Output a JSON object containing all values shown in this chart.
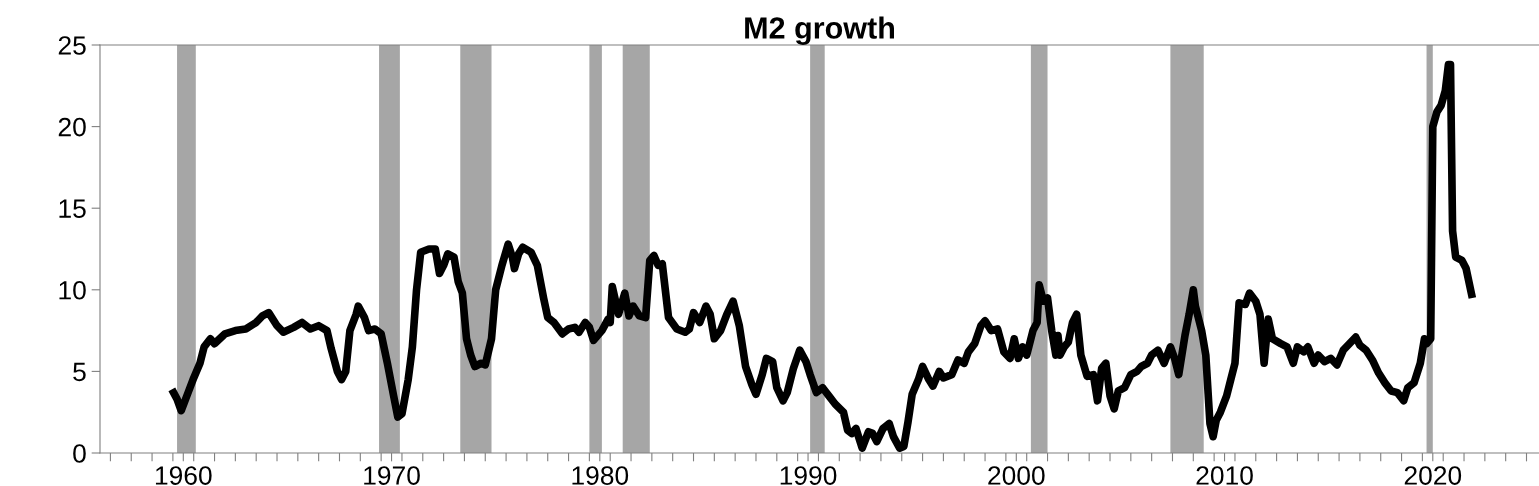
{
  "chart_data": {
    "type": "line",
    "title": "M2 growth",
    "xlim": [
      1956.0,
      2025.1
    ],
    "ylim": [
      0,
      25
    ],
    "yticks": [
      0,
      5,
      10,
      15,
      20,
      25
    ],
    "xticks": [
      {
        "value": 1956.5,
        "label": null
      },
      {
        "value": 1957.5,
        "label": null
      },
      {
        "value": 1958.5,
        "label": null
      },
      {
        "value": 1959.5,
        "label": null
      },
      1960,
      {
        "value": 1960.5,
        "label": null
      },
      {
        "value": 1961.5,
        "label": null
      },
      {
        "value": 1962.5,
        "label": null
      },
      {
        "value": 1963.5,
        "label": null
      },
      {
        "value": 1964.5,
        "label": null
      },
      {
        "value": 1965.5,
        "label": null
      },
      {
        "value": 1966.5,
        "label": null
      },
      {
        "value": 1967.5,
        "label": null
      },
      {
        "value": 1968.5,
        "label": null
      },
      {
        "value": 1969.5,
        "label": null
      },
      1970,
      {
        "value": 1970.5,
        "label": null
      },
      {
        "value": 1971.5,
        "label": null
      },
      {
        "value": 1972.5,
        "label": null
      },
      {
        "value": 1973.5,
        "label": null
      },
      {
        "value": 1974.5,
        "label": null
      },
      {
        "value": 1975.5,
        "label": null
      },
      {
        "value": 1976.5,
        "label": null
      },
      {
        "value": 1977.5,
        "label": null
      },
      {
        "value": 1978.5,
        "label": null
      },
      {
        "value": 1979.5,
        "label": null
      },
      1980,
      {
        "value": 1980.5,
        "label": null
      },
      {
        "value": 1981.5,
        "label": null
      },
      {
        "value": 1982.5,
        "label": null
      },
      {
        "value": 1983.5,
        "label": null
      },
      {
        "value": 1984.5,
        "label": null
      },
      {
        "value": 1985.5,
        "label": null
      },
      {
        "value": 1986.5,
        "label": null
      },
      {
        "value": 1987.5,
        "label": null
      },
      {
        "value": 1988.5,
        "label": null
      },
      {
        "value": 1989.5,
        "label": null
      },
      1990,
      {
        "value": 1990.5,
        "label": null
      },
      {
        "value": 1991.5,
        "label": null
      },
      {
        "value": 1992.5,
        "label": null
      },
      {
        "value": 1993.5,
        "label": null
      },
      {
        "value": 1994.5,
        "label": null
      },
      {
        "value": 1995.5,
        "label": null
      },
      {
        "value": 1996.5,
        "label": null
      },
      {
        "value": 1997.5,
        "label": null
      },
      {
        "value": 1998.5,
        "label": null
      },
      {
        "value": 1999.5,
        "label": null
      },
      2000,
      {
        "value": 2000.5,
        "label": null
      },
      {
        "value": 2001.5,
        "label": null
      },
      {
        "value": 2002.5,
        "label": null
      },
      {
        "value": 2003.5,
        "label": null
      },
      {
        "value": 2004.5,
        "label": null
      },
      {
        "value": 2005.5,
        "label": null
      },
      {
        "value": 2006.5,
        "label": null
      },
      {
        "value": 2007.5,
        "label": null
      },
      {
        "value": 2008.5,
        "label": null
      },
      {
        "value": 2009.5,
        "label": null
      },
      2010,
      {
        "value": 2010.5,
        "label": null
      },
      {
        "value": 2011.5,
        "label": null
      },
      {
        "value": 2012.5,
        "label": null
      },
      {
        "value": 2013.5,
        "label": null
      },
      {
        "value": 2014.5,
        "label": null
      },
      {
        "value": 2015.5,
        "label": null
      },
      {
        "value": 2016.5,
        "label": null
      },
      {
        "value": 2017.5,
        "label": null
      },
      {
        "value": 2018.5,
        "label": null
      },
      {
        "value": 2019.5,
        "label": null
      },
      2020,
      {
        "value": 2020.5,
        "label": null
      },
      {
        "value": 2021.5,
        "label": null
      },
      {
        "value": 2022.5,
        "label": null
      },
      {
        "value": 2023.5,
        "label": null
      },
      {
        "value": 2024.5,
        "label": null
      }
    ],
    "grid": false,
    "legend": false,
    "marker": "none",
    "line_style": "solid",
    "bands": [
      {
        "axis": "x",
        "from": 1959.7,
        "to": 1960.6,
        "color": "#a6a6a6"
      },
      {
        "axis": "x",
        "from": 1969.4,
        "to": 1970.4,
        "color": "#a6a6a6"
      },
      {
        "axis": "x",
        "from": 1973.3,
        "to": 1974.8,
        "color": "#a6a6a6"
      },
      {
        "axis": "x",
        "from": 1979.5,
        "to": 1980.1,
        "color": "#a6a6a6"
      },
      {
        "axis": "x",
        "from": 1981.1,
        "to": 1982.4,
        "color": "#a6a6a6"
      },
      {
        "axis": "x",
        "from": 1990.1,
        "to": 1990.8,
        "color": "#a6a6a6"
      },
      {
        "axis": "x",
        "from": 2000.7,
        "to": 2001.5,
        "color": "#a6a6a6"
      },
      {
        "axis": "x",
        "from": 2007.4,
        "to": 2009.0,
        "color": "#a6a6a6"
      },
      {
        "axis": "x",
        "from": 2019.7,
        "to": 2020.0,
        "color": "#a6a6a6"
      }
    ],
    "series": [
      {
        "color": "#000000",
        "x": [
          1959.45,
          1959.7,
          1959.9,
          1960.2,
          1960.5,
          1960.8,
          1961.0,
          1961.3,
          1961.5,
          1962.0,
          1962.5,
          1963.0,
          1963.5,
          1963.8,
          1964.1,
          1964.5,
          1964.8,
          1965.3,
          1965.7,
          1966.1,
          1966.5,
          1966.9,
          1967.1,
          1967.4,
          1967.6,
          1967.8,
          1968.0,
          1968.3,
          1968.4,
          1968.7,
          1968.9,
          1969.2,
          1969.5,
          1969.8,
          1970.1,
          1970.3,
          1970.5,
          1970.8,
          1971.0,
          1971.2,
          1971.4,
          1971.8,
          1972.1,
          1972.3,
          1972.5,
          1972.7,
          1973.0,
          1973.2,
          1973.4,
          1973.6,
          1973.8,
          1974.0,
          1974.3,
          1974.5,
          1974.8,
          1975.0,
          1975.3,
          1975.6,
          1975.8,
          1975.9,
          1976.1,
          1976.3,
          1976.7,
          1977.0,
          1977.3,
          1977.5,
          1977.8,
          1978.2,
          1978.5,
          1978.8,
          1979.0,
          1979.3,
          1979.5,
          1979.7,
          1980.1,
          1980.4,
          1980.5,
          1980.6,
          1980.9,
          1981.2,
          1981.4,
          1981.6,
          1981.9,
          1982.2,
          1982.4,
          1982.6,
          1982.8,
          1983.0,
          1983.3,
          1983.7,
          1984.1,
          1984.3,
          1984.5,
          1984.8,
          1985.1,
          1985.3,
          1985.5,
          1985.8,
          1986.1,
          1986.4,
          1986.7,
          1987.0,
          1987.3,
          1987.5,
          1987.8,
          1988.0,
          1988.3,
          1988.5,
          1988.8,
          1989.0,
          1989.3,
          1989.6,
          1989.9,
          1990.1,
          1990.4,
          1990.7,
          1991.0,
          1991.3,
          1991.7,
          1991.9,
          1992.1,
          1992.3,
          1992.6,
          1992.9,
          1993.1,
          1993.3,
          1993.6,
          1993.9,
          1994.1,
          1994.4,
          1994.6,
          1994.8,
          1995.0,
          1995.3,
          1995.5,
          1995.8,
          1996.0,
          1996.3,
          1996.5,
          1996.9,
          1997.2,
          1997.5,
          1997.7,
          1998.0,
          1998.3,
          1998.5,
          1998.8,
          1999.1,
          1999.4,
          1999.7,
          1999.9,
          2000.1,
          2000.3,
          2000.5,
          2000.8,
          2001.0,
          2001.1,
          2001.3,
          2001.5,
          2001.7,
          2001.9,
          2002.0,
          2002.1,
          2002.3,
          2002.5,
          2002.7,
          2002.9,
          2003.1,
          2003.4,
          2003.7,
          2003.9,
          2004.1,
          2004.3,
          2004.5,
          2004.7,
          2004.9,
          2005.2,
          2005.5,
          2005.8,
          2006.0,
          2006.3,
          2006.5,
          2006.8,
          2007.1,
          2007.4,
          2007.6,
          2007.8,
          2008.1,
          2008.3,
          2008.5,
          2008.6,
          2008.7,
          2008.9,
          2009.1,
          2009.3,
          2009.45,
          2009.6,
          2009.8,
          2010.1,
          2010.3,
          2010.5,
          2010.7,
          2011.0,
          2011.2,
          2011.5,
          2011.7,
          2011.9,
          2012.1,
          2012.3,
          2012.7,
          2013.0,
          2013.3,
          2013.5,
          2013.8,
          2014.0,
          2014.3,
          2014.5,
          2014.8,
          2015.1,
          2015.4,
          2015.7,
          2016.0,
          2016.3,
          2016.5,
          2016.8,
          2017.1,
          2017.4,
          2017.7,
          2018.0,
          2018.3,
          2018.6,
          2018.8,
          2019.1,
          2019.4,
          2019.6,
          2019.7,
          2019.9,
          2020.0,
          2020.2,
          2020.4,
          2020.6,
          2020.75,
          2020.85,
          2020.95,
          2021.1,
          2021.4,
          2021.6,
          2021.9
        ],
        "values": [
          3.9,
          3.3,
          2.6,
          3.6,
          4.6,
          5.5,
          6.5,
          7.0,
          6.7,
          7.3,
          7.5,
          7.6,
          8.0,
          8.4,
          8.6,
          7.8,
          7.4,
          7.7,
          8.0,
          7.6,
          7.8,
          7.5,
          6.4,
          5.0,
          4.5,
          5.0,
          7.5,
          8.5,
          9.0,
          8.3,
          7.5,
          7.6,
          7.3,
          5.5,
          3.5,
          2.2,
          2.4,
          4.5,
          6.5,
          10.0,
          12.3,
          12.5,
          12.5,
          11.0,
          11.5,
          12.2,
          12.0,
          10.5,
          9.8,
          7.0,
          6.0,
          5.3,
          5.5,
          5.4,
          7.0,
          10.0,
          11.5,
          12.8,
          12.0,
          11.3,
          12.2,
          12.6,
          12.3,
          11.5,
          9.5,
          8.3,
          8.0,
          7.3,
          7.6,
          7.7,
          7.4,
          8.0,
          7.7,
          6.9,
          7.5,
          8.2,
          8.0,
          10.2,
          8.5,
          9.8,
          8.4,
          9.0,
          8.4,
          8.3,
          11.8,
          12.1,
          11.5,
          11.6,
          8.3,
          7.6,
          7.4,
          7.6,
          8.6,
          8.0,
          9.0,
          8.5,
          7.0,
          7.5,
          8.5,
          9.3,
          7.8,
          5.3,
          4.2,
          3.6,
          4.8,
          5.8,
          5.6,
          4.0,
          3.2,
          3.7,
          5.2,
          6.3,
          5.6,
          4.8,
          3.7,
          4.0,
          3.5,
          3.0,
          2.5,
          1.4,
          1.2,
          1.5,
          0.3,
          1.3,
          1.2,
          0.7,
          1.5,
          1.8,
          1.0,
          0.3,
          0.4,
          1.9,
          3.6,
          4.5,
          5.3,
          4.5,
          4.1,
          5.0,
          4.6,
          4.8,
          5.7,
          5.5,
          6.2,
          6.7,
          7.8,
          8.1,
          7.5,
          7.6,
          6.2,
          5.8,
          7.0,
          5.8,
          6.5,
          6.0,
          7.5,
          8.0,
          10.3,
          9.3,
          9.5,
          7.5,
          6.0,
          7.2,
          6.0,
          6.5,
          6.8,
          8.0,
          8.5,
          6.0,
          4.7,
          4.8,
          3.2,
          5.2,
          5.5,
          3.5,
          2.7,
          3.8,
          4.0,
          4.8,
          5.0,
          5.3,
          5.5,
          6.0,
          6.3,
          5.5,
          6.5,
          5.8,
          4.8,
          7.2,
          8.5,
          10.0,
          9.0,
          8.5,
          7.5,
          6.0,
          1.8,
          1.0,
          2.0,
          2.5,
          3.5,
          4.5,
          5.5,
          9.2,
          9.1,
          9.8,
          9.3,
          8.5,
          5.5,
          8.2,
          7.0,
          6.7,
          6.5,
          5.5,
          6.5,
          6.2,
          6.5,
          5.5,
          6.0,
          5.6,
          5.8,
          5.4,
          6.3,
          6.7,
          7.1,
          6.6,
          6.3,
          5.7,
          4.9,
          4.3,
          3.8,
          3.7,
          3.2,
          4.0,
          4.3,
          5.5,
          7.0,
          6.7,
          7.0,
          20.0,
          20.9,
          21.3,
          22.2,
          23.8,
          23.8,
          13.6,
          12.0,
          11.8,
          11.3,
          9.5
        ]
      }
    ]
  }
}
